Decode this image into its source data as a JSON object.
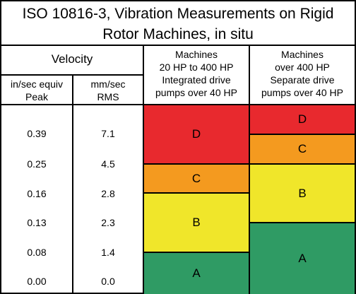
{
  "title": {
    "line1": "ISO 10816-3, Vibration Measurements on Rigid",
    "line2": "Rotor Machines, in situ"
  },
  "columns": {
    "velocity": "Velocity",
    "in_sec": {
      "line1": "in/sec equiv",
      "line2": "Peak"
    },
    "mm_sec": {
      "line1": "mm/sec",
      "line2": "RMS"
    },
    "group1": {
      "line1": "Machines",
      "line2": "20 HP to 400 HP",
      "line3": "Integrated drive",
      "line4": "pumps over 40 HP"
    },
    "group2": {
      "line1": "Machines",
      "line2": "over 400 HP",
      "line3": "Separate drive",
      "line4": "pumps over 40 HP"
    }
  },
  "rows": [
    {
      "in_sec": "0.39",
      "mm_sec": "7.1"
    },
    {
      "in_sec": "0.25",
      "mm_sec": "4.5"
    },
    {
      "in_sec": "0.16",
      "mm_sec": "2.8"
    },
    {
      "in_sec": "0.13",
      "mm_sec": "2.3"
    },
    {
      "in_sec": "0.08",
      "mm_sec": "1.4"
    },
    {
      "in_sec": "0.00",
      "mm_sec": "0.0"
    }
  ],
  "zone_colors": {
    "D": "#e8292e",
    "C": "#f49a1f",
    "B": "#f0e62a",
    "A": "#2f9b64"
  },
  "group1_zones": [
    {
      "label": "D",
      "upper_mm_sec": null,
      "lower_mm_sec": 4.5
    },
    {
      "label": "C",
      "upper_mm_sec": 4.5,
      "lower_mm_sec": 2.8
    },
    {
      "label": "B",
      "upper_mm_sec": 2.8,
      "lower_mm_sec": 1.4
    },
    {
      "label": "A",
      "upper_mm_sec": 1.4,
      "lower_mm_sec": 0.0
    }
  ],
  "group2_zones": [
    {
      "label": "D",
      "upper_mm_sec": null,
      "lower_mm_sec": 7.1
    },
    {
      "label": "C",
      "upper_mm_sec": 7.1,
      "lower_mm_sec": 4.5
    },
    {
      "label": "B",
      "upper_mm_sec": 4.5,
      "lower_mm_sec": 2.3
    },
    {
      "label": "A",
      "upper_mm_sec": 2.3,
      "lower_mm_sec": 0.0
    }
  ]
}
